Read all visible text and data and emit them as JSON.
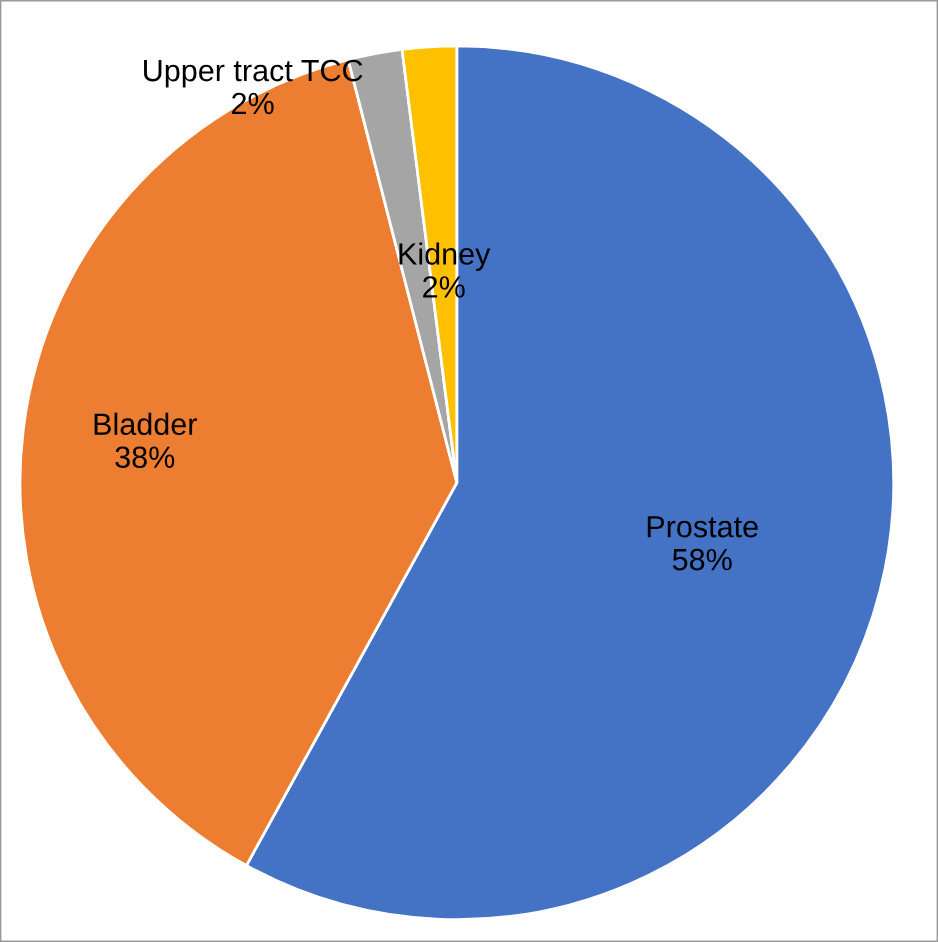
{
  "chart_data": {
    "type": "pie",
    "categories": [
      "Prostate",
      "Bladder",
      "Upper tract TCC",
      "Kidney"
    ],
    "values": [
      58,
      38,
      2,
      2
    ],
    "value_labels": [
      "58%",
      "38%",
      "2%",
      "2%"
    ],
    "colors": [
      "#4472c4",
      "#ed7d31",
      "#a5a5a5",
      "#ffc000"
    ]
  }
}
